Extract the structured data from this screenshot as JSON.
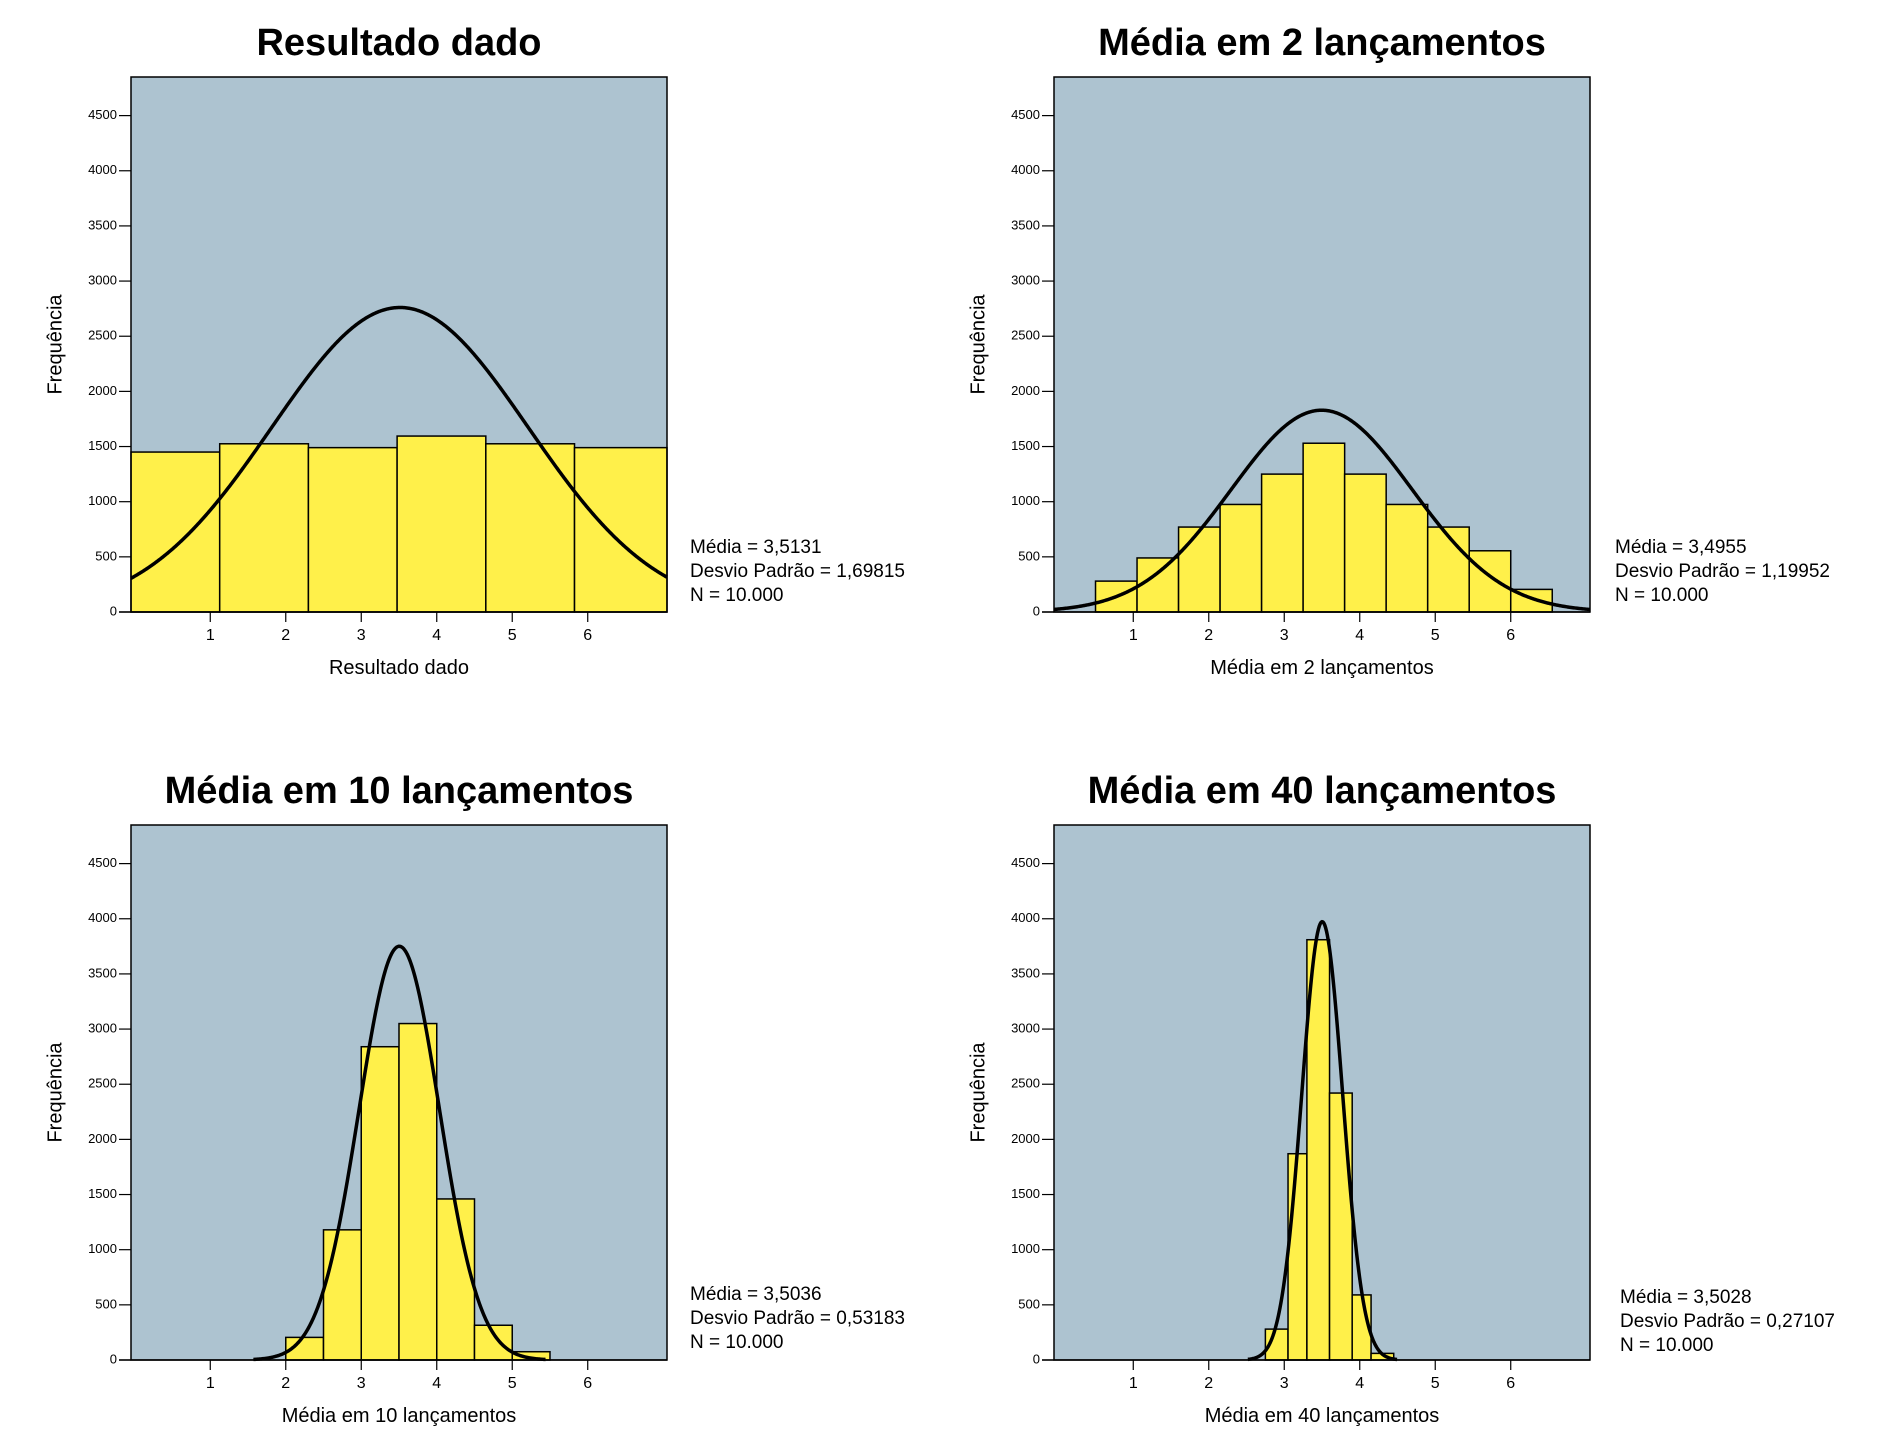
{
  "colors": {
    "plot_background": "#adc3d0",
    "bar_fill": "#fff04a",
    "bar_stroke": "#000000",
    "curve": "#000000"
  },
  "chart_data": [
    {
      "type": "bar",
      "title": "Resultado dado",
      "xlabel": "Resultado dado",
      "ylabel": "Frequência",
      "xlim": [
        -0.05,
        7.05
      ],
      "ylim": [
        0,
        4850
      ],
      "xticks": [
        1,
        2,
        3,
        4,
        5,
        6
      ],
      "yticks": [
        0,
        500,
        1000,
        1500,
        2000,
        2500,
        3000,
        3500,
        4000,
        4500
      ],
      "bin_edges": [
        -0.05,
        1.125,
        2.3,
        3.475,
        4.65,
        5.825,
        7.05
      ],
      "values": [
        1450,
        1525,
        1490,
        1595,
        1525,
        1490
      ],
      "normal_curve": {
        "mean": 3.5131,
        "sd": 1.69815,
        "n": 10000,
        "bin_width": 1.175
      },
      "stats": [
        "Média = 3,5131",
        "Desvio Padrão = 1,69815",
        "N = 10.000"
      ]
    },
    {
      "type": "bar",
      "title": "Média em 2 lançamentos",
      "xlabel": "Média em 2 lançamentos",
      "ylabel": "Frequência",
      "xlim": [
        -0.05,
        7.05
      ],
      "ylim": [
        0,
        4850
      ],
      "xticks": [
        1,
        2,
        3,
        4,
        5,
        6
      ],
      "yticks": [
        0,
        500,
        1000,
        1500,
        2000,
        2500,
        3000,
        3500,
        4000,
        4500
      ],
      "bin_edges": [
        0.5,
        1.05,
        1.6,
        2.15,
        2.7,
        3.25,
        3.8,
        4.35,
        4.9,
        5.45,
        6.0,
        6.55
      ],
      "values": [
        280,
        490,
        770,
        975,
        1250,
        1530,
        1250,
        975,
        770,
        555,
        205
      ],
      "normal_curve": {
        "mean": 3.4955,
        "sd": 1.19952,
        "n": 10000,
        "bin_width": 0.55
      },
      "stats": [
        "Média = 3,4955",
        "Desvio Padrão = 1,19952",
        "N = 10.000"
      ]
    },
    {
      "type": "bar",
      "title": "Média em 10 lançamentos",
      "xlabel": "Média em 10 lançamentos",
      "ylabel": "Frequência",
      "xlim": [
        -0.05,
        7.05
      ],
      "ylim": [
        0,
        4850
      ],
      "xticks": [
        1,
        2,
        3,
        4,
        5,
        6
      ],
      "yticks": [
        0,
        500,
        1000,
        1500,
        2000,
        2500,
        3000,
        3500,
        4000,
        4500
      ],
      "bin_edges": [
        2.0,
        2.5,
        3.0,
        3.5,
        4.0,
        4.5,
        5.0,
        5.5
      ],
      "values": [
        205,
        1180,
        2840,
        3050,
        1460,
        315,
        75
      ],
      "normal_curve": {
        "mean": 3.5036,
        "sd": 0.53183,
        "n": 10000,
        "bin_width": 0.5
      },
      "stats": [
        "Média = 3,5036",
        "Desvio Padrão = 0,53183",
        "N = 10.000"
      ]
    },
    {
      "type": "bar",
      "title": "Média em 40 lançamentos",
      "xlabel": "Média em 40 lançamentos",
      "ylabel": "Frequência",
      "xlim": [
        -0.05,
        7.05
      ],
      "ylim": [
        0,
        4850
      ],
      "xticks": [
        1,
        2,
        3,
        4,
        5,
        6
      ],
      "yticks": [
        0,
        500,
        1000,
        1500,
        2000,
        2500,
        3000,
        3500,
        4000,
        4500
      ],
      "bin_edges": [
        2.75,
        3.05,
        3.3,
        3.6,
        3.9,
        4.15,
        4.45
      ],
      "values": [
        280,
        1870,
        3810,
        2420,
        590,
        60
      ],
      "normal_curve": {
        "mean": 3.5028,
        "sd": 0.27107,
        "n": 10000,
        "bin_width": 0.27
      },
      "stats": [
        "Média = 3,5028",
        "Desvio Padrão = 0,27107",
        "N = 10.000"
      ]
    }
  ]
}
